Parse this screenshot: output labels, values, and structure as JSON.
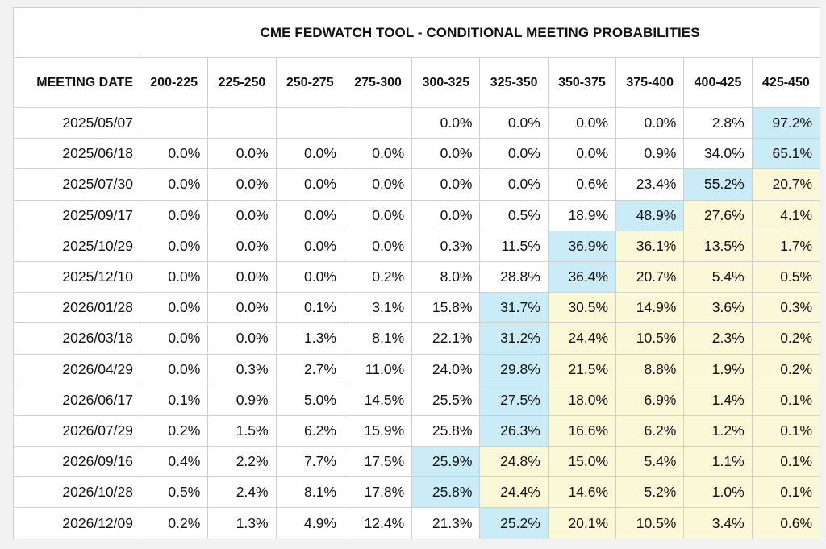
{
  "title": "CME FEDWATCH TOOL - CONDITIONAL MEETING PROBABILITIES",
  "date_header": "MEETING DATE",
  "ranges": [
    "200-225",
    "225-250",
    "250-275",
    "275-300",
    "300-325",
    "325-350",
    "350-375",
    "375-400",
    "400-425",
    "425-450"
  ],
  "colors": {
    "highlight_max": "#c9ecf6",
    "highlight_above": "#fbf8d8",
    "border": "#cfcfcf"
  },
  "rows": [
    {
      "date": "2025/05/07",
      "values": [
        "",
        "",
        "",
        "",
        "0.0%",
        "0.0%",
        "0.0%",
        "0.0%",
        "2.8%",
        "97.2%"
      ],
      "max": 9
    },
    {
      "date": "2025/06/18",
      "values": [
        "0.0%",
        "0.0%",
        "0.0%",
        "0.0%",
        "0.0%",
        "0.0%",
        "0.0%",
        "0.9%",
        "34.0%",
        "65.1%"
      ],
      "max": 9
    },
    {
      "date": "2025/07/30",
      "values": [
        "0.0%",
        "0.0%",
        "0.0%",
        "0.0%",
        "0.0%",
        "0.0%",
        "0.6%",
        "23.4%",
        "55.2%",
        "20.7%"
      ],
      "max": 8
    },
    {
      "date": "2025/09/17",
      "values": [
        "0.0%",
        "0.0%",
        "0.0%",
        "0.0%",
        "0.0%",
        "0.5%",
        "18.9%",
        "48.9%",
        "27.6%",
        "4.1%"
      ],
      "max": 7
    },
    {
      "date": "2025/10/29",
      "values": [
        "0.0%",
        "0.0%",
        "0.0%",
        "0.0%",
        "0.3%",
        "11.5%",
        "36.9%",
        "36.1%",
        "13.5%",
        "1.7%"
      ],
      "max": 6
    },
    {
      "date": "2025/12/10",
      "values": [
        "0.0%",
        "0.0%",
        "0.0%",
        "0.2%",
        "8.0%",
        "28.8%",
        "36.4%",
        "20.7%",
        "5.4%",
        "0.5%"
      ],
      "max": 6
    },
    {
      "date": "2026/01/28",
      "values": [
        "0.0%",
        "0.0%",
        "0.1%",
        "3.1%",
        "15.8%",
        "31.7%",
        "30.5%",
        "14.9%",
        "3.6%",
        "0.3%"
      ],
      "max": 5
    },
    {
      "date": "2026/03/18",
      "values": [
        "0.0%",
        "0.0%",
        "1.3%",
        "8.1%",
        "22.1%",
        "31.2%",
        "24.4%",
        "10.5%",
        "2.3%",
        "0.2%"
      ],
      "max": 5
    },
    {
      "date": "2026/04/29",
      "values": [
        "0.0%",
        "0.3%",
        "2.7%",
        "11.0%",
        "24.0%",
        "29.8%",
        "21.5%",
        "8.8%",
        "1.9%",
        "0.2%"
      ],
      "max": 5
    },
    {
      "date": "2026/06/17",
      "values": [
        "0.1%",
        "0.9%",
        "5.0%",
        "14.5%",
        "25.5%",
        "27.5%",
        "18.0%",
        "6.9%",
        "1.4%",
        "0.1%"
      ],
      "max": 5
    },
    {
      "date": "2026/07/29",
      "values": [
        "0.2%",
        "1.5%",
        "6.2%",
        "15.9%",
        "25.8%",
        "26.3%",
        "16.6%",
        "6.2%",
        "1.2%",
        "0.1%"
      ],
      "max": 5
    },
    {
      "date": "2026/09/16",
      "values": [
        "0.4%",
        "2.2%",
        "7.7%",
        "17.5%",
        "25.9%",
        "24.8%",
        "15.0%",
        "5.4%",
        "1.1%",
        "0.1%"
      ],
      "max": 4
    },
    {
      "date": "2026/10/28",
      "values": [
        "0.5%",
        "2.4%",
        "8.1%",
        "17.8%",
        "25.8%",
        "24.4%",
        "14.6%",
        "5.2%",
        "1.0%",
        "0.1%"
      ],
      "max": 4
    },
    {
      "date": "2026/12/09",
      "values": [
        "0.2%",
        "1.3%",
        "4.9%",
        "12.4%",
        "21.3%",
        "25.2%",
        "20.1%",
        "10.5%",
        "3.4%",
        "0.6%"
      ],
      "max": 5
    }
  ]
}
